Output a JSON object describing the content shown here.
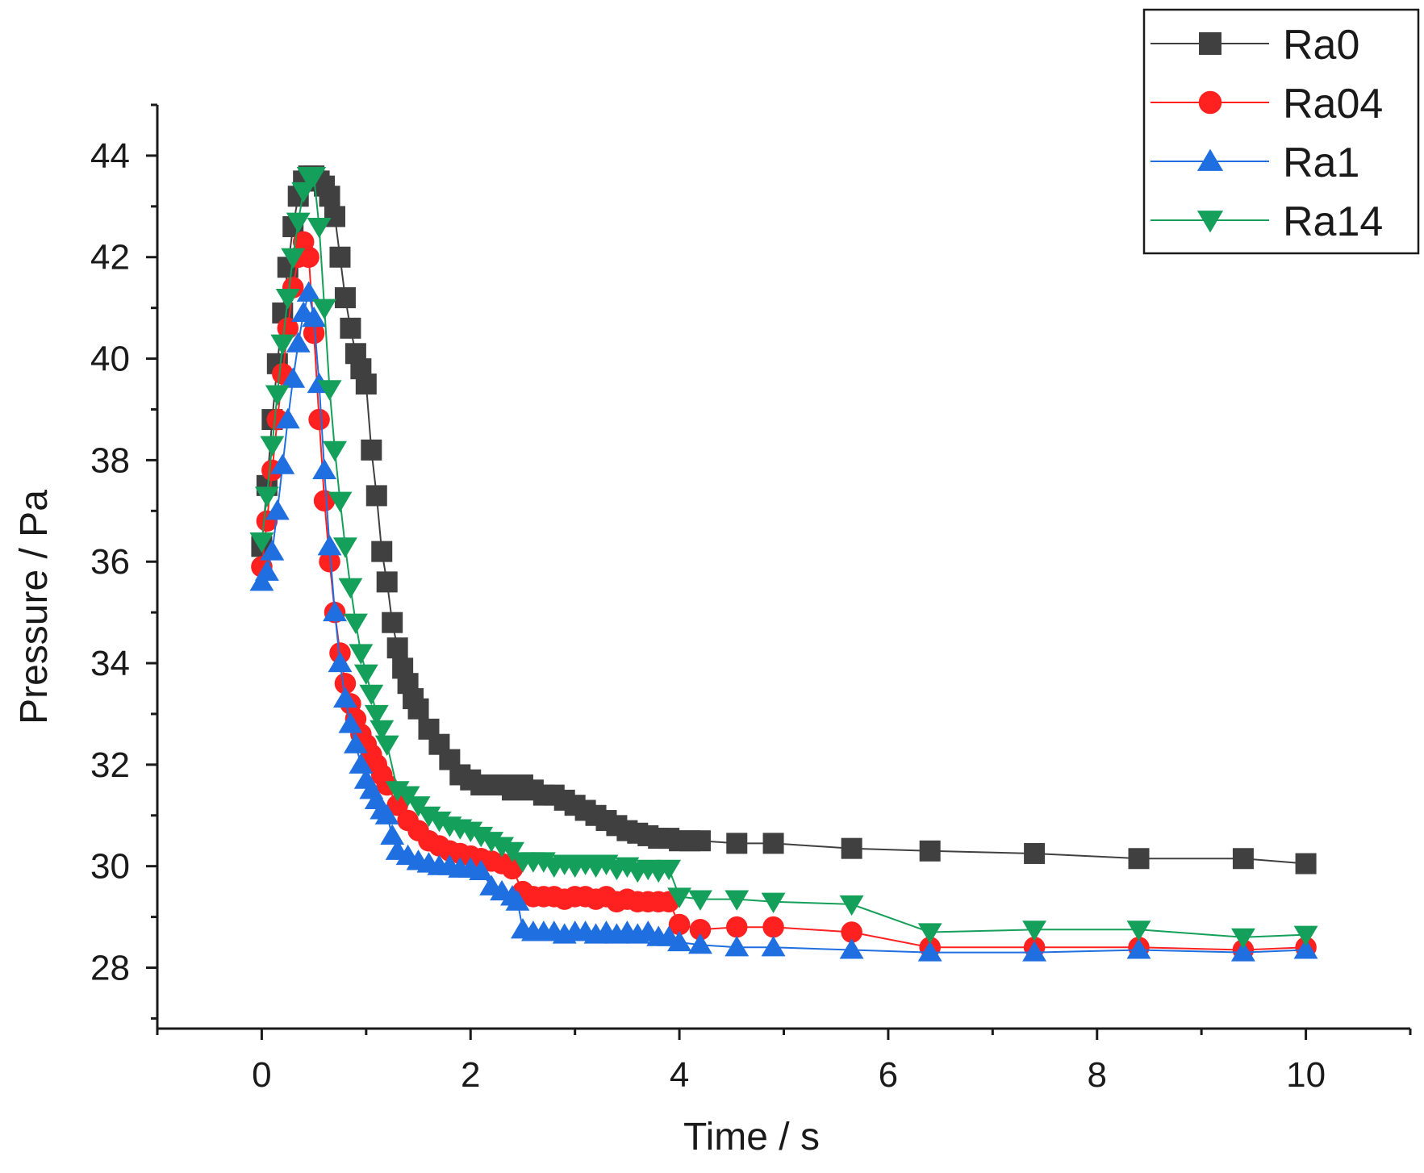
{
  "chart_data": {
    "type": "line",
    "title": "",
    "xlabel": "Time / s",
    "ylabel": "Pressure / Pa",
    "xlim": [
      -1,
      11
    ],
    "ylim": [
      26.8,
      45
    ],
    "xticks": [
      0,
      2,
      4,
      6,
      8,
      10
    ],
    "xtick_labels": [
      "0",
      "2",
      "4",
      "6",
      "8",
      "10"
    ],
    "yticks": [
      28,
      30,
      32,
      34,
      36,
      38,
      40,
      42,
      44
    ],
    "ytick_labels": [
      "28",
      "30",
      "32",
      "34",
      "36",
      "38",
      "40",
      "42",
      "44"
    ],
    "grid": false,
    "legend_position": "top-right",
    "series": [
      {
        "name": "Ra0",
        "color": "#404040",
        "marker": "square",
        "x": [
          0,
          0.05,
          0.1,
          0.15,
          0.2,
          0.25,
          0.3,
          0.35,
          0.4,
          0.45,
          0.5,
          0.55,
          0.6,
          0.65,
          0.7,
          0.75,
          0.8,
          0.85,
          0.9,
          0.95,
          1.0,
          1.05,
          1.1,
          1.15,
          1.2,
          1.25,
          1.3,
          1.35,
          1.4,
          1.45,
          1.5,
          1.6,
          1.7,
          1.8,
          1.9,
          2.0,
          2.1,
          2.2,
          2.3,
          2.4,
          2.5,
          2.6,
          2.7,
          2.8,
          2.9,
          3.0,
          3.1,
          3.2,
          3.3,
          3.4,
          3.5,
          3.6,
          3.7,
          3.8,
          3.9,
          4.0,
          4.1,
          4.2,
          4.55,
          4.9,
          5.65,
          6.4,
          7.4,
          8.4,
          9.4,
          10.0
        ],
        "y": [
          36.3,
          37.5,
          38.8,
          39.9,
          40.9,
          41.8,
          42.6,
          43.2,
          43.5,
          43.6,
          43.6,
          43.5,
          43.4,
          43.2,
          42.8,
          42.0,
          41.2,
          40.6,
          40.1,
          39.8,
          39.5,
          38.2,
          37.3,
          36.2,
          35.6,
          34.8,
          34.3,
          33.9,
          33.6,
          33.3,
          33.1,
          32.7,
          32.4,
          32.1,
          31.8,
          31.7,
          31.6,
          31.6,
          31.6,
          31.5,
          31.6,
          31.5,
          31.4,
          31.4,
          31.3,
          31.2,
          31.1,
          31.0,
          30.9,
          30.8,
          30.7,
          30.65,
          30.6,
          30.55,
          30.55,
          30.5,
          30.5,
          30.5,
          30.45,
          30.45,
          30.35,
          30.3,
          30.25,
          30.15,
          30.15,
          30.05
        ]
      },
      {
        "name": "Ra04",
        "color": "#ff2020",
        "marker": "circle",
        "x": [
          0,
          0.05,
          0.1,
          0.15,
          0.2,
          0.25,
          0.3,
          0.35,
          0.4,
          0.45,
          0.5,
          0.55,
          0.6,
          0.65,
          0.7,
          0.75,
          0.8,
          0.85,
          0.9,
          0.95,
          1.0,
          1.05,
          1.1,
          1.15,
          1.2,
          1.3,
          1.4,
          1.5,
          1.6,
          1.7,
          1.8,
          1.9,
          2.0,
          2.1,
          2.2,
          2.3,
          2.4,
          2.5,
          2.6,
          2.7,
          2.8,
          2.9,
          3.0,
          3.1,
          3.2,
          3.3,
          3.4,
          3.5,
          3.6,
          3.7,
          3.8,
          3.9,
          4.0,
          4.2,
          4.55,
          4.9,
          5.65,
          6.4,
          7.4,
          8.4,
          9.4,
          10.0
        ],
        "y": [
          35.9,
          36.8,
          37.8,
          38.8,
          39.7,
          40.6,
          41.4,
          42.0,
          42.3,
          42.0,
          40.5,
          38.8,
          37.2,
          36.0,
          35.0,
          34.2,
          33.6,
          33.2,
          32.9,
          32.6,
          32.4,
          32.2,
          32.0,
          31.8,
          31.6,
          31.2,
          30.9,
          30.7,
          30.5,
          30.4,
          30.3,
          30.25,
          30.2,
          30.15,
          30.1,
          30.05,
          29.95,
          29.5,
          29.4,
          29.4,
          29.4,
          29.35,
          29.4,
          29.4,
          29.35,
          29.4,
          29.3,
          29.35,
          29.3,
          29.3,
          29.3,
          29.3,
          28.85,
          28.75,
          28.8,
          28.8,
          28.7,
          28.4,
          28.4,
          28.4,
          28.35,
          28.4
        ]
      },
      {
        "name": "Ra1",
        "color": "#1f6fe0",
        "marker": "triangle-up",
        "x": [
          0,
          0.05,
          0.1,
          0.15,
          0.2,
          0.25,
          0.3,
          0.35,
          0.4,
          0.45,
          0.5,
          0.55,
          0.6,
          0.65,
          0.7,
          0.75,
          0.8,
          0.85,
          0.9,
          0.95,
          1.0,
          1.05,
          1.1,
          1.15,
          1.2,
          1.25,
          1.3,
          1.4,
          1.5,
          1.6,
          1.7,
          1.8,
          1.9,
          2.0,
          2.1,
          2.2,
          2.3,
          2.4,
          2.45,
          2.5,
          2.6,
          2.7,
          2.8,
          2.9,
          3.0,
          3.1,
          3.2,
          3.3,
          3.4,
          3.5,
          3.6,
          3.7,
          3.8,
          3.9,
          4.0,
          4.2,
          4.55,
          4.9,
          5.65,
          6.4,
          7.4,
          8.4,
          9.4,
          10.0
        ],
        "y": [
          35.6,
          35.8,
          36.2,
          37.0,
          37.9,
          38.8,
          39.6,
          40.3,
          40.9,
          41.3,
          40.8,
          39.5,
          37.8,
          36.3,
          35.0,
          34.0,
          33.3,
          32.8,
          32.4,
          32.0,
          31.7,
          31.5,
          31.3,
          31.1,
          31.0,
          30.6,
          30.3,
          30.2,
          30.1,
          30.05,
          30.0,
          30.0,
          29.95,
          29.95,
          29.9,
          29.6,
          29.5,
          29.4,
          29.3,
          28.75,
          28.7,
          28.7,
          28.7,
          28.65,
          28.7,
          28.7,
          28.65,
          28.7,
          28.65,
          28.7,
          28.65,
          28.7,
          28.6,
          28.6,
          28.5,
          28.45,
          28.4,
          28.4,
          28.35,
          28.3,
          28.3,
          28.35,
          28.3,
          28.35
        ]
      },
      {
        "name": "Ra14",
        "color": "#14a05a",
        "marker": "triangle-down",
        "x": [
          0,
          0.05,
          0.1,
          0.15,
          0.2,
          0.25,
          0.3,
          0.35,
          0.4,
          0.45,
          0.5,
          0.55,
          0.6,
          0.65,
          0.7,
          0.75,
          0.8,
          0.85,
          0.9,
          0.95,
          1.0,
          1.05,
          1.1,
          1.15,
          1.2,
          1.3,
          1.4,
          1.5,
          1.6,
          1.7,
          1.8,
          1.9,
          2.0,
          2.1,
          2.2,
          2.3,
          2.4,
          2.5,
          2.6,
          2.7,
          2.8,
          2.9,
          3.0,
          3.1,
          3.2,
          3.3,
          3.4,
          3.5,
          3.6,
          3.7,
          3.8,
          3.9,
          4.0,
          4.2,
          4.55,
          4.9,
          5.65,
          6.4,
          7.4,
          8.4,
          9.4,
          10.0
        ],
        "y": [
          36.4,
          37.3,
          38.3,
          39.3,
          40.3,
          41.2,
          42.0,
          42.7,
          43.3,
          43.6,
          43.6,
          42.6,
          41.0,
          39.4,
          38.2,
          37.2,
          36.3,
          35.5,
          34.8,
          34.2,
          33.8,
          33.4,
          33.0,
          32.7,
          32.4,
          31.5,
          31.4,
          31.2,
          31.0,
          30.9,
          30.8,
          30.75,
          30.7,
          30.6,
          30.5,
          30.4,
          30.3,
          30.1,
          30.1,
          30.1,
          30.0,
          30.05,
          30.0,
          30.05,
          30.0,
          30.05,
          29.95,
          30.0,
          29.9,
          29.95,
          29.9,
          29.95,
          29.4,
          29.35,
          29.35,
          29.3,
          29.25,
          28.7,
          28.75,
          28.75,
          28.6,
          28.65
        ]
      }
    ]
  }
}
